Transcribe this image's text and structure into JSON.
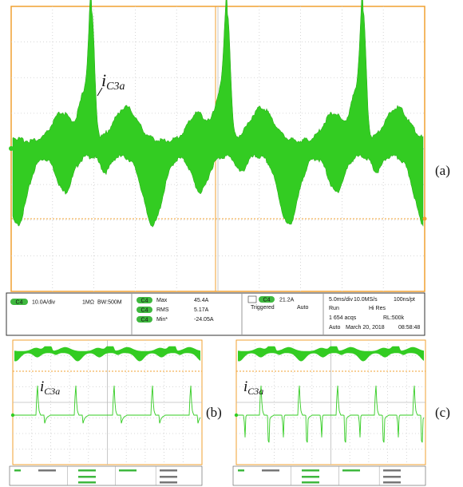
{
  "panel_a": {
    "label": "(a)",
    "annotation": {
      "base": "i",
      "sub": "C3a"
    },
    "status": {
      "channel": "C4",
      "scale": "10.0A/div",
      "coupling": "1MΩ",
      "bandwidth": "BW:500M",
      "meas": [
        {
          "name": "Max",
          "value": "45.4A"
        },
        {
          "name": "RMS",
          "value": "5.17A"
        },
        {
          "name": "Min*",
          "value": "-24.05A"
        }
      ],
      "trigger_level": "21.2A",
      "trigger_state": "Triggered",
      "trigger_mode": "Auto",
      "timebase": "5.0ms/div",
      "sample_rate": "10.0MS/s",
      "resolution": "100ns/pt",
      "run": "Run",
      "acq_mode": "Hi Res",
      "acqs": "1 654 acqs",
      "record": "RL:500k",
      "mode": "Auto",
      "date": "March 20, 2018",
      "time": "08:58:48"
    }
  },
  "panel_b": {
    "label": "(b)",
    "annotation": {
      "base": "i",
      "sub": "C3a"
    }
  },
  "panel_c": {
    "label": "(c)",
    "annotation": {
      "base": "i",
      "sub": "C3a"
    }
  }
}
